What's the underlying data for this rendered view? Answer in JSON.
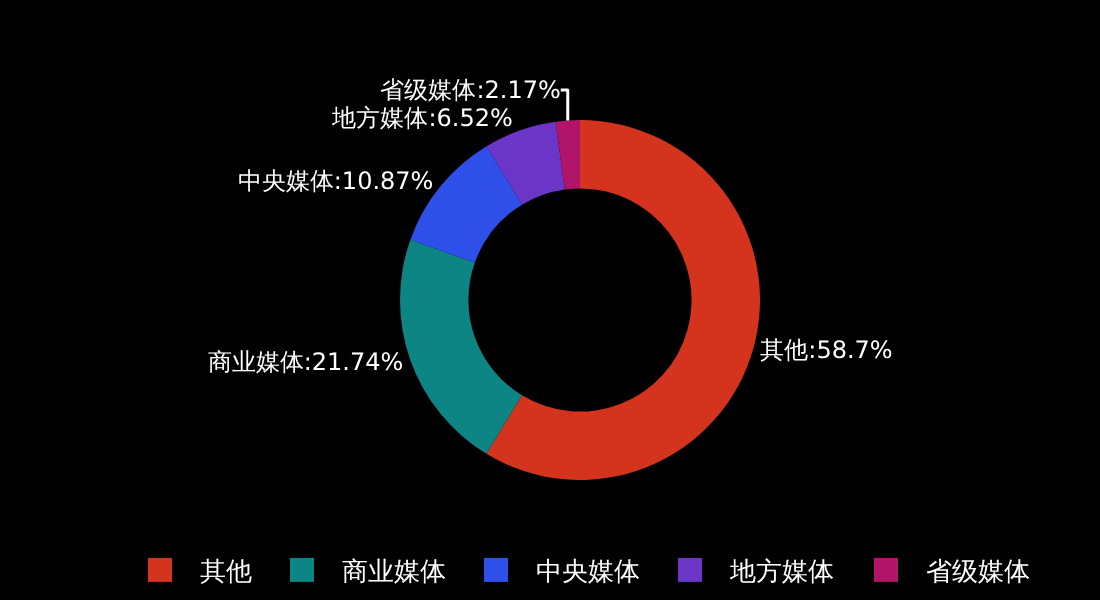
{
  "chart_data": {
    "type": "donut",
    "categories": [
      "其他",
      "商业媒体",
      "中央媒体",
      "地方媒体",
      "省级媒体"
    ],
    "values": [
      58.7,
      21.74,
      10.87,
      6.52,
      2.17
    ],
    "colors": [
      "#d4341e",
      "#0e8585",
      "#2e50e8",
      "#6b36c8",
      "#b0156a"
    ],
    "value_labels": [
      "其他:58.7%",
      "商业媒体:21.74%",
      "中央媒体:10.87%",
      "地方媒体:6.52%",
      "省级媒体:2.17%"
    ],
    "legend": "bottom"
  }
}
